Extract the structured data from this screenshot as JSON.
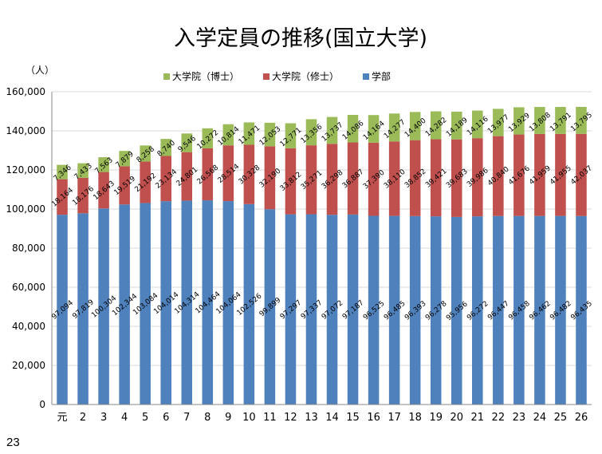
{
  "page_number": "23",
  "chart_data": {
    "type": "bar",
    "stacked": true,
    "title": "入学定員の推移(国立大学)",
    "unit_label": "（人）",
    "xlabel": "",
    "ylabel": "",
    "ylim": [
      0,
      160000
    ],
    "y_ticks": [
      "0",
      "20,000",
      "40,000",
      "60,000",
      "80,000",
      "100,000",
      "120,000",
      "140,000",
      "160,000"
    ],
    "grid": true,
    "legend_position": "top",
    "categories": [
      "元",
      "2",
      "3",
      "4",
      "5",
      "6",
      "7",
      "8",
      "9",
      "10",
      "11",
      "12",
      "13",
      "14",
      "15",
      "16",
      "17",
      "18",
      "19",
      "20",
      "21",
      "22",
      "23",
      "24",
      "25",
      "26"
    ],
    "series": [
      {
        "name": "学部",
        "color": "#4F81BD",
        "values": [
          97094,
          97819,
          100304,
          102344,
          103084,
          104014,
          104314,
          104464,
          104064,
          102526,
          99899,
          97297,
          97337,
          97072,
          97187,
          96525,
          96485,
          96393,
          96278,
          95956,
          96272,
          96447,
          96458,
          96462,
          96482,
          96435
        ],
        "labels": [
          "97,094",
          "97,819",
          "100,304",
          "102,344",
          "103,084",
          "104,014",
          "104,314",
          "104,464",
          "104,064",
          "102,526",
          "99,899",
          "97,297",
          "97,337",
          "97,072",
          "97,187",
          "96,525",
          "96,485",
          "96,393",
          "96,278",
          "95,956",
          "96,272",
          "96,447",
          "96,458",
          "96,462",
          "96,482",
          "96,435"
        ]
      },
      {
        "name": "大学院（修士）",
        "color": "#C0504D",
        "values": [
          18164,
          18176,
          18643,
          19519,
          21192,
          23134,
          24801,
          26568,
          28514,
          30328,
          32190,
          33812,
          35271,
          36298,
          36887,
          37390,
          38110,
          38852,
          39421,
          39683,
          39986,
          40840,
          41676,
          41959,
          41955,
          42037
        ],
        "labels": [
          "18,164",
          "18,176",
          "18,643",
          "19,519",
          "21,192",
          "23,134",
          "24,801",
          "26,568",
          "28,514",
          "30,328",
          "32,190",
          "33,812",
          "35,271",
          "36,298",
          "36,887",
          "37,390",
          "38,110",
          "38,852",
          "39,421",
          "39,683",
          "39,986",
          "40,840",
          "41,676",
          "41,959",
          "41,955",
          "42,037"
        ]
      },
      {
        "name": "大学院（博士）",
        "color": "#9BBB59",
        "values": [
          7346,
          7433,
          7563,
          7879,
          8258,
          8740,
          9546,
          10272,
          10814,
          11471,
          12053,
          12771,
          13356,
          13737,
          14086,
          14164,
          14277,
          14400,
          14282,
          14189,
          14116,
          13977,
          13929,
          13808,
          13791,
          13795
        ],
        "labels": [
          "7,346",
          "7,433",
          "7,563",
          "7,879",
          "8,258",
          "8,740",
          "9,546",
          "10,272",
          "10,814",
          "11,471",
          "12,053",
          "12,771",
          "13,356",
          "13,737",
          "14,086",
          "14,164",
          "14,277",
          "14,400",
          "14,282",
          "14,189",
          "14,116",
          "13,977",
          "13,929",
          "13,808",
          "13,791",
          "13,795"
        ]
      }
    ],
    "legend_order": [
      "大学院（博士）",
      "大学院（修士）",
      "学部"
    ]
  }
}
